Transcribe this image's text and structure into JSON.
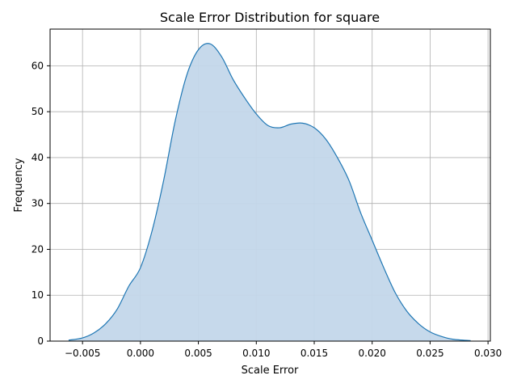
{
  "chart_data": {
    "type": "area",
    "title": "Scale Error Distribution for square",
    "xlabel": "Scale Error",
    "ylabel": "Frequency",
    "xlim": [
      -0.0078,
      0.0302
    ],
    "ylim": [
      0,
      68
    ],
    "x_ticks": [
      -0.005,
      0.0,
      0.005,
      0.01,
      0.015,
      0.02,
      0.025,
      0.03
    ],
    "x_tick_labels": [
      "−0.005",
      "0.000",
      "0.005",
      "0.010",
      "0.015",
      "0.020",
      "0.025",
      "0.030"
    ],
    "y_ticks": [
      0,
      10,
      20,
      30,
      40,
      50,
      60
    ],
    "y_tick_labels": [
      "0",
      "10",
      "20",
      "30",
      "40",
      "50",
      "60"
    ],
    "grid": true,
    "series": [
      {
        "x": [
          -0.0062,
          -0.005,
          -0.004,
          -0.003,
          -0.002,
          -0.001,
          0.0,
          0.001,
          0.002,
          0.003,
          0.004,
          0.005,
          0.006,
          0.007,
          0.008,
          0.009,
          0.01,
          0.011,
          0.012,
          0.013,
          0.014,
          0.015,
          0.016,
          0.017,
          0.018,
          0.019,
          0.02,
          0.021,
          0.022,
          0.023,
          0.024,
          0.025,
          0.026,
          0.027,
          0.0285
        ],
        "y": [
          0.2,
          0.7,
          1.8,
          3.8,
          7.0,
          12.0,
          16.0,
          24.0,
          35.0,
          48.0,
          58.0,
          63.5,
          64.8,
          62.0,
          57.0,
          53.0,
          49.5,
          47.0,
          46.5,
          47.3,
          47.5,
          46.5,
          44.0,
          40.0,
          35.0,
          28.0,
          22.0,
          16.0,
          10.5,
          6.5,
          3.8,
          2.0,
          1.0,
          0.4,
          0.1
        ]
      }
    ],
    "colors": {
      "line": "#1f77b4",
      "fill": "#c3d7ea",
      "grid": "#b0b0b0",
      "axis": "#000000"
    }
  }
}
